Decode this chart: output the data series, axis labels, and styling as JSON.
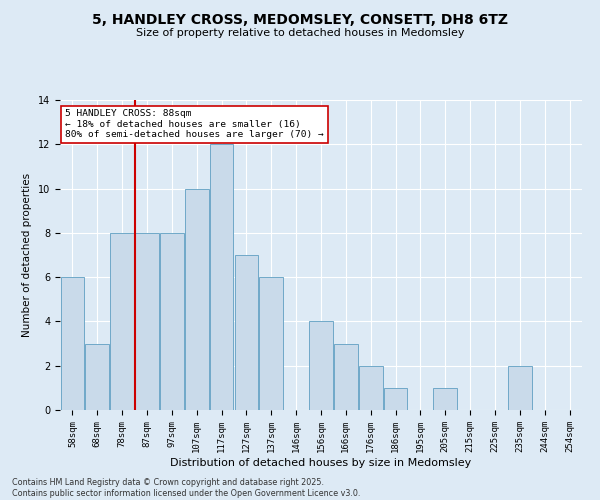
{
  "title1": "5, HANDLEY CROSS, MEDOMSLEY, CONSETT, DH8 6TZ",
  "title2": "Size of property relative to detached houses in Medomsley",
  "xlabel": "Distribution of detached houses by size in Medomsley",
  "ylabel": "Number of detached properties",
  "bin_labels": [
    "58sqm",
    "68sqm",
    "78sqm",
    "87sqm",
    "97sqm",
    "107sqm",
    "117sqm",
    "127sqm",
    "137sqm",
    "146sqm",
    "156sqm",
    "166sqm",
    "176sqm",
    "186sqm",
    "195sqm",
    "205sqm",
    "215sqm",
    "225sqm",
    "235sqm",
    "244sqm",
    "254sqm"
  ],
  "bar_heights": [
    6,
    3,
    8,
    8,
    8,
    10,
    12,
    7,
    6,
    0,
    4,
    3,
    2,
    1,
    0,
    1,
    0,
    0,
    2,
    0,
    0
  ],
  "bar_color": "#c9daea",
  "bar_edge_color": "#6fa8c8",
  "vline_color": "#cc0000",
  "vline_x_index": 3,
  "annotation_text": "5 HANDLEY CROSS: 88sqm\n← 18% of detached houses are smaller (16)\n80% of semi-detached houses are larger (70) →",
  "annotation_box_color": "white",
  "annotation_edge_color": "#cc0000",
  "ylim": [
    0,
    14
  ],
  "yticks": [
    0,
    2,
    4,
    6,
    8,
    10,
    12,
    14
  ],
  "footnote": "Contains HM Land Registry data © Crown copyright and database right 2025.\nContains public sector information licensed under the Open Government Licence v3.0.",
  "bg_color": "#ddeaf5",
  "plot_bg_color": "#ddeaf5",
  "grid_color": "#ffffff"
}
